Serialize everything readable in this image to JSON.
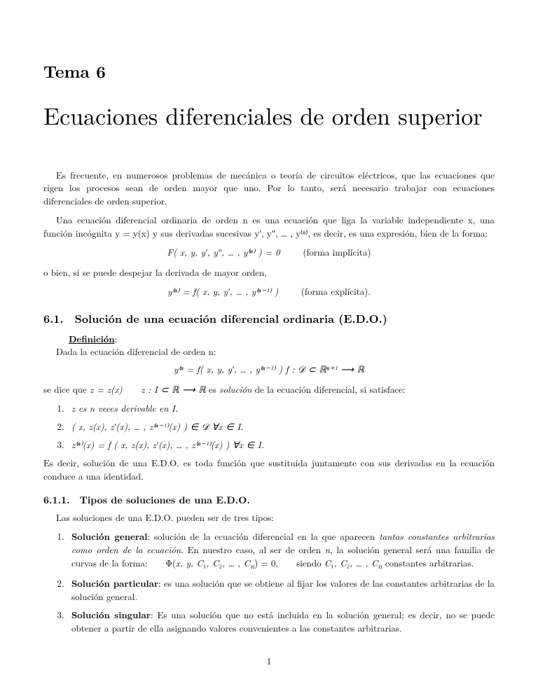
{
  "chapter": {
    "label": "Tema 6",
    "title": "Ecuaciones diferenciales de orden superior"
  },
  "intro": {
    "p1": "Es frecuente, en numerosos problemas de mecánica o teoría de circuitos eléctricos, que las ecuaciones que rigen los procesos sean de orden mayor que uno. Por lo tanto, será necesario trabajar con ecuaciones diferenciales de orden superior.",
    "p2": "Una ecuación diferencial ordinaria de orden  n  es una ecuación que liga la variable independiente x, una función incógnita y = y(x) y sus derivadas sucesivas y′, y″, … , y⁽ⁿ⁾, es decir, es una expresión, bien de la forma:",
    "eq1": "F( x, y, y′, y″, … , y⁽ⁿ⁾ ) = 0",
    "eq1_label": "(forma implícita)",
    "p3": "o bien, si se puede despejar la derivada de mayor orden,",
    "eq2": "y⁽ⁿ⁾ = f( x, y, y′, … , y⁽ⁿ⁻¹⁾ )",
    "eq2_label": "(forma explícita)."
  },
  "sec61": {
    "num": "6.1.",
    "title": "Solución de una ecuación diferencial ordinaria (E.D.O.)",
    "def_label": "Definición",
    "def_text": "Dada la ecuación diferencial de orden n:",
    "def_eq": "y⁽ⁿ = f( x, y, y′, … , y⁽ⁿ⁻¹⁾ )        f : 𝒟 ⊂  ℝⁿ⁺¹  ⟶  ℝ",
    "after_def": "se dice que z = z(x)    z : I ⊂  ℝ  ⟶  ℝ es solución de la ecuación diferencial, si satisface:",
    "items": [
      "z es n veces derivable en I.",
      "( x, z(x), z′(x), … , z⁽ⁿ⁻¹⁾(x) ) ∈ 𝒟    ∀x ∈ I.",
      "z⁽ⁿ⁾(x) = f ( x, z(x), z′(x), … , z⁽ⁿ⁻¹⁾(x) )     ∀x ∈ I."
    ],
    "closing": "Es decir, solución de una E.D.O. es toda función que sustituida juntamente con sus derivadas en la ecuación conduce a una identidad."
  },
  "sec611": {
    "num": "6.1.1.",
    "title": "Tipos de soluciones de una E.D.O.",
    "lead": "Las soluciones de una E.D.O. pueden ser de tres tipos:",
    "items": [
      {
        "term": "Solución general",
        "body": ": solución de la ecuación diferencial en la que aparecen tantas constantes arbitrarias como orden de la ecuación. En nuestro caso, al ser de orden n, la solución general será una familia de curvas de la forma:     Φ(x, y, C₁, C₂, … , Cₙ) = 0,     siendo C₁, C₂, … , Cₙ constantes arbitrarias."
      },
      {
        "term": "Solución particular",
        "body": ": es una solución que se obtiene al fijar los valores de las constantes arbitrarias de la solución general."
      },
      {
        "term": "Solución singular",
        "body": ": Es una solución que no está incluida en la solución general; es decir, no se puede obtener a partir de ella asignando valores convenientes a las constantes arbitrarias."
      }
    ]
  },
  "page_number": "1"
}
